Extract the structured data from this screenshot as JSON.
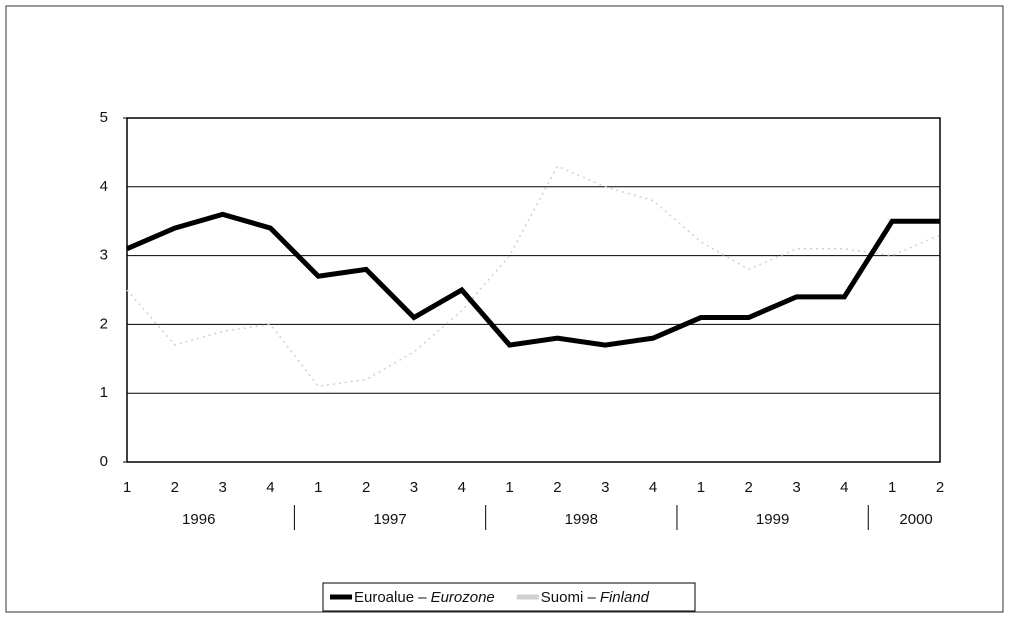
{
  "chart_data": {
    "type": "line",
    "categories": [
      "1",
      "2",
      "3",
      "4",
      "1",
      "2",
      "3",
      "4",
      "1",
      "2",
      "3",
      "4",
      "1",
      "2",
      "3",
      "4",
      "1",
      "2"
    ],
    "groups": [
      {
        "label": "1996",
        "size": 4
      },
      {
        "label": "1997",
        "size": 4
      },
      {
        "label": "1998",
        "size": 4
      },
      {
        "label": "1999",
        "size": 4
      },
      {
        "label": "2000",
        "size": 2
      }
    ],
    "series": [
      {
        "name": "Euroalue –",
        "name_en": "Eurozone",
        "color": "#000000",
        "values": [
          3.1,
          3.4,
          3.6,
          3.4,
          2.7,
          2.8,
          2.1,
          2.5,
          1.7,
          1.8,
          1.7,
          1.8,
          2.1,
          2.1,
          2.4,
          2.4,
          3.5,
          3.5
        ]
      },
      {
        "name": "Suomi –",
        "name_en": "Finland",
        "color": "#d0d0d0",
        "values": [
          2.5,
          1.7,
          1.9,
          2.0,
          1.1,
          1.2,
          1.6,
          2.2,
          3.0,
          4.3,
          4.0,
          3.8,
          3.2,
          2.8,
          3.1,
          3.1,
          3.0,
          3.3
        ]
      }
    ],
    "ylim": [
      0,
      5
    ],
    "yticks": [
      0,
      1,
      2,
      3,
      4,
      5
    ],
    "grid": true
  }
}
